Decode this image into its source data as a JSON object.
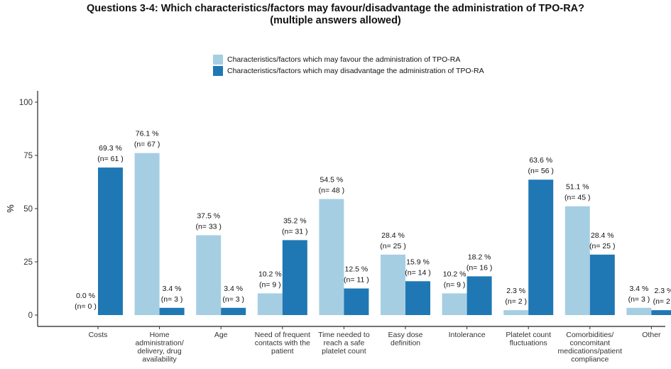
{
  "title_line1": "Questions 3-4: Which characteristics/factors may favour/disadvantage the administration of TPO-RA?",
  "title_line2": "(multiple answers allowed)",
  "chart_data": {
    "type": "bar",
    "title": "Questions 3-4: Which characteristics/factors may favour/disadvantage the administration of TPO-RA? (multiple answers allowed)",
    "ylabel": "%",
    "xlabel": "",
    "ylim": [
      0,
      100
    ],
    "yticks": [
      0,
      25,
      50,
      75,
      100
    ],
    "grid": false,
    "legend_position": "top",
    "categories": [
      [
        "Costs"
      ],
      [
        "Home",
        "administration/",
        "delivery, drug",
        "availability"
      ],
      [
        "Age"
      ],
      [
        "Need of frequent",
        "contacts with the",
        "patient"
      ],
      [
        "Time needed to",
        "reach a safe",
        "platelet count"
      ],
      [
        "Easy dose",
        "definition"
      ],
      [
        "Intolerance"
      ],
      [
        "Platelet count",
        "fluctuations"
      ],
      [
        "Comorbidities/",
        "concomitant",
        "medications/patient",
        "compliance"
      ],
      [
        "Other"
      ]
    ],
    "series": [
      {
        "name": "Characteristics/factors which may favour the administration of TPO-RA",
        "color": "#a6cee3",
        "values": [
          0.0,
          76.1,
          37.5,
          10.2,
          54.5,
          28.4,
          10.2,
          2.3,
          51.1,
          3.4
        ],
        "n": [
          0,
          67,
          33,
          9,
          48,
          25,
          9,
          2,
          45,
          3
        ]
      },
      {
        "name": "Characteristics/factors which may disadvantage the administration of TPO-RA",
        "color": "#1f78b4",
        "values": [
          69.3,
          3.4,
          3.4,
          35.2,
          12.5,
          15.9,
          18.2,
          63.6,
          28.4,
          2.3
        ],
        "n": [
          61,
          3,
          3,
          31,
          11,
          14,
          16,
          56,
          25,
          2
        ]
      }
    ]
  }
}
